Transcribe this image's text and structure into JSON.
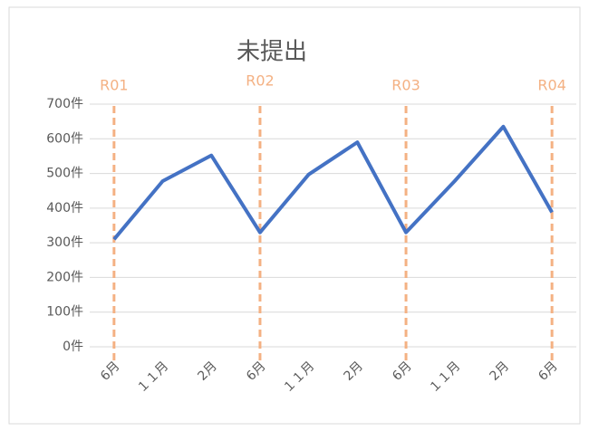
{
  "chart_data": {
    "type": "line",
    "title": "未提出",
    "categories": [
      "6月",
      "１１月",
      "2月",
      "6月",
      "１１月",
      "2月",
      "6月",
      "１１月",
      "2月",
      "6月"
    ],
    "series": [
      {
        "name": "未提出",
        "color": "#4472c4",
        "values": [
          310,
          478,
          552,
          330,
          497,
          590,
          330,
          478,
          635,
          388
        ]
      }
    ],
    "ylim": [
      0,
      700
    ],
    "yticks": [
      {
        "value": 0,
        "label": "0件"
      },
      {
        "value": 100,
        "label": "100件"
      },
      {
        "value": 200,
        "label": "200件"
      },
      {
        "value": 300,
        "label": "300件"
      },
      {
        "value": 400,
        "label": "400件"
      },
      {
        "value": 500,
        "label": "500件"
      },
      {
        "value": 600,
        "label": "600件"
      },
      {
        "value": 700,
        "label": "700件"
      }
    ],
    "grid": true,
    "annotations": [
      "R01",
      "R02",
      "R03",
      "R04"
    ],
    "annotation_color": "#f4b183"
  }
}
